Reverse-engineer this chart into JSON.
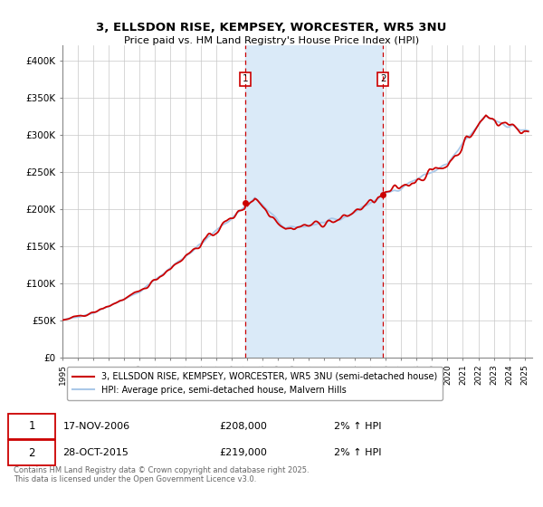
{
  "title_line1": "3, ELLSDON RISE, KEMPSEY, WORCESTER, WR5 3NU",
  "title_line2": "Price paid vs. HM Land Registry's House Price Index (HPI)",
  "legend_line1": "3, ELLSDON RISE, KEMPSEY, WORCESTER, WR5 3NU (semi-detached house)",
  "legend_line2": "HPI: Average price, semi-detached house, Malvern Hills",
  "footer": "Contains HM Land Registry data © Crown copyright and database right 2025.\nThis data is licensed under the Open Government Licence v3.0.",
  "hpi_color": "#aac8e8",
  "price_color": "#cc0000",
  "shade_color": "#daeaf8",
  "vline_color": "#cc0000",
  "ylim_min": 0,
  "ylim_max": 420000,
  "yticks": [
    0,
    50000,
    100000,
    150000,
    200000,
    250000,
    300000,
    350000,
    400000
  ],
  "ytick_labels": [
    "£0",
    "£50K",
    "£100K",
    "£150K",
    "£200K",
    "£250K",
    "£300K",
    "£350K",
    "£400K"
  ],
  "sale1_date": "2006-11-17",
  "sale1_price": 208000,
  "sale2_date": "2015-10-28",
  "sale2_price": 219000,
  "ann1_date": "17-NOV-2006",
  "ann1_price": "£208,000",
  "ann1_hpi": "2% ↑ HPI",
  "ann2_date": "28-OCT-2015",
  "ann2_price": "£219,000",
  "ann2_hpi": "2% ↑ HPI"
}
